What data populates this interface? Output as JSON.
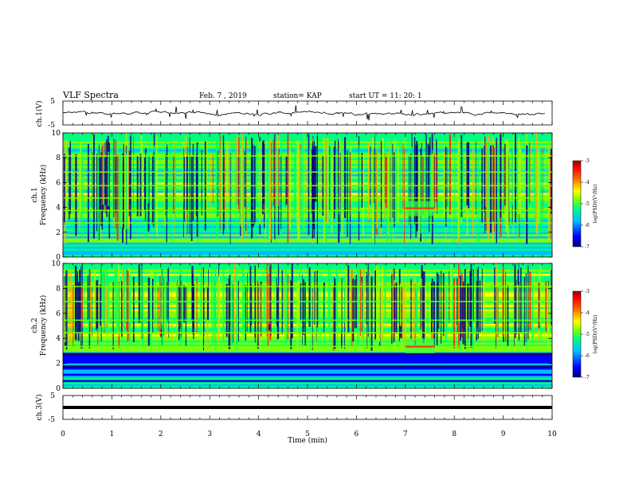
{
  "header": {
    "title": "VLF Spectra",
    "date": "Feb. 7 , 2019",
    "station": "station= KAP",
    "start": "start  UT =   11: 20: 1"
  },
  "chart_data": [
    {
      "type": "line",
      "name": "ch1-voltage",
      "ylabel": "ch.1(V)",
      "ylim": [
        -5,
        5
      ],
      "yticks": [
        "5",
        "-5"
      ],
      "xlim": [
        0,
        10
      ]
    },
    {
      "type": "heatmap",
      "name": "ch1-spectrogram",
      "ylabel": "ch.1\nFrequency  (kHz)",
      "ylim": [
        0,
        10
      ],
      "yticks": [
        "0",
        "2",
        "4",
        "6",
        "8",
        "10"
      ],
      "xlim": [
        0,
        10
      ],
      "colorbar": {
        "label": "log(PSD)(V²/Hz)",
        "range": [
          -7,
          -3
        ],
        "ticks": [
          "-3",
          "-4",
          "-5",
          "-6",
          "-7"
        ]
      }
    },
    {
      "type": "heatmap",
      "name": "ch2-spectrogram",
      "ylabel": "ch.2\nFrequency  (kHz)",
      "ylim": [
        0,
        10
      ],
      "yticks": [
        "0",
        "2",
        "4",
        "6",
        "8",
        "10"
      ],
      "xlim": [
        0,
        10
      ],
      "colorbar": {
        "label": "log(PSD)(V²/Hz)",
        "range": [
          -7,
          -3
        ],
        "ticks": [
          "-3",
          "-4",
          "-5",
          "-6",
          "-7"
        ]
      }
    },
    {
      "type": "line",
      "name": "ch3-voltage",
      "ylabel": "ch.3(V)",
      "ylim": [
        -5,
        5
      ],
      "yticks": [
        "5",
        "-5"
      ],
      "xlim": [
        0,
        10
      ],
      "constant_value": 0
    }
  ],
  "xaxis": {
    "label": "Time  (min)",
    "ticks": [
      "0",
      "1",
      "2",
      "3",
      "4",
      "5",
      "6",
      "7",
      "8",
      "9",
      "10"
    ]
  },
  "colors": {
    "colormap": [
      "#00007f",
      "#0000ff",
      "#00bfff",
      "#00ff80",
      "#80ff00",
      "#ffff00",
      "#ff8000",
      "#ff0000",
      "#7f0000"
    ]
  }
}
